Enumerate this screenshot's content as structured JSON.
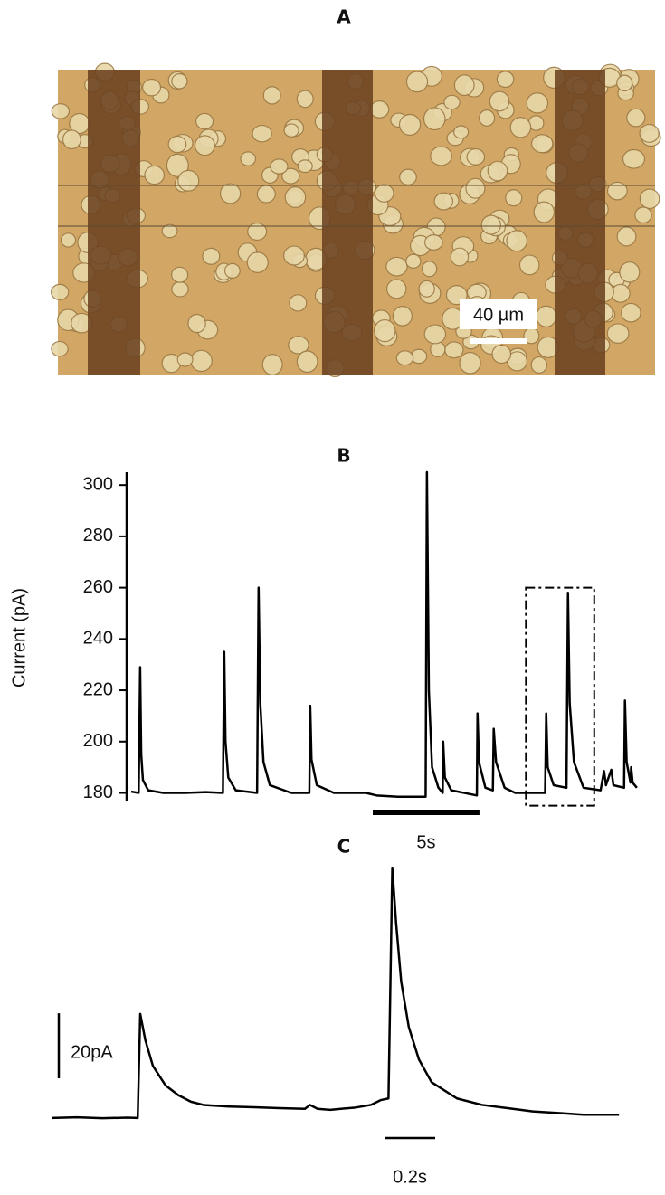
{
  "panel_a": {
    "label": "A",
    "scale_bar": "40 µm"
  },
  "chart_data": [
    {
      "type": "line",
      "panel": "B",
      "ylabel": "Current (pA)",
      "color": "#000000",
      "ylim": [
        177,
        305
      ],
      "yticks": [
        180,
        200,
        220,
        240,
        260,
        280,
        300
      ],
      "xlim": [
        0,
        24
      ],
      "scale_bar": {
        "label": "5s",
        "value": 5
      },
      "inset_box": {
        "x": [
          18.5,
          21.7
        ],
        "y": [
          175,
          260
        ]
      },
      "series": [
        {
          "x": [
            0,
            0.35,
            0.42,
            0.47,
            0.55,
            0.8,
            1.5,
            2.5,
            3.5,
            4.3,
            4.36,
            4.42,
            4.55,
            4.9,
            5.9,
            5.97,
            6.05,
            6.2,
            6.5,
            7.5,
            8.35,
            8.39,
            8.45,
            8.7,
            9.5,
            11,
            11.5,
            12.5,
            13.8,
            13.86,
            13.95,
            14.1,
            14.4,
            14.6,
            14.62,
            14.7,
            15,
            16.2,
            16.23,
            16.3,
            16.6,
            16.95,
            16.99,
            17.1,
            17.5,
            18,
            19.4,
            19.45,
            19.52,
            19.8,
            20.4,
            20.47,
            20.55,
            20.75,
            21.2,
            22,
            22.16,
            22.25,
            22.5,
            22.6,
            23.1,
            23.14,
            23.22,
            23.4,
            23.43,
            23.5,
            23.7
          ],
          "values": [
            180.5,
            180,
            229,
            195,
            185,
            181,
            180,
            180,
            180.3,
            180,
            235,
            200,
            186,
            181,
            180,
            260,
            215,
            192,
            183,
            180,
            180,
            214,
            193,
            183,
            180,
            180,
            179,
            178.5,
            178.5,
            305,
            220,
            190,
            182,
            180,
            200,
            186,
            181,
            179,
            211,
            192,
            182,
            181,
            205,
            192,
            182,
            180,
            180,
            211,
            190,
            183,
            182,
            258,
            215,
            192,
            182,
            181,
            188.5,
            183,
            189,
            183,
            182,
            216,
            192,
            184,
            190,
            184,
            182
          ]
        }
      ]
    },
    {
      "type": "line",
      "panel": "C",
      "color": "#000000",
      "ylim": [
        178,
        259
      ],
      "xlim": [
        0,
        2.25
      ],
      "scale_bar_y": {
        "label": "20pA",
        "value": 20
      },
      "scale_bar_x": {
        "label": "0.2s",
        "value": 0.2
      },
      "series": [
        {
          "x": [
            0,
            0.1,
            0.2,
            0.3,
            0.34,
            0.35,
            0.37,
            0.4,
            0.45,
            0.5,
            0.55,
            0.6,
            0.7,
            0.8,
            0.9,
            1.0,
            1.02,
            1.05,
            1.1,
            1.2,
            1.26,
            1.3,
            1.33,
            1.345,
            1.36,
            1.38,
            1.41,
            1.45,
            1.5,
            1.6,
            1.7,
            1.8,
            1.9,
            2.0,
            2.1,
            2.24
          ],
          "values": [
            180,
            180.2,
            179.9,
            180.1,
            180,
            212,
            204,
            196,
            190,
            187,
            185,
            184,
            183.5,
            183.3,
            183,
            182.8,
            184,
            182.8,
            182.5,
            183.2,
            184,
            185.5,
            186,
            257,
            240,
            222,
            208,
            198,
            191,
            186,
            184,
            183,
            182,
            181.5,
            181,
            181
          ]
        }
      ]
    }
  ]
}
